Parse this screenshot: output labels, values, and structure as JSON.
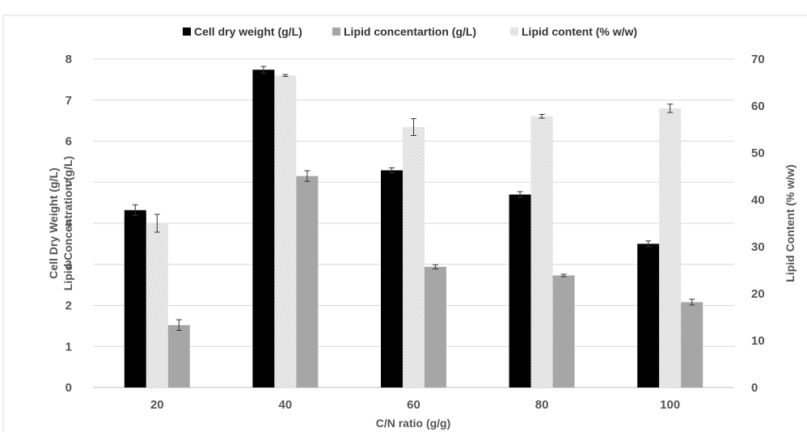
{
  "chart_data": {
    "type": "bar",
    "categories": [
      "20",
      "40",
      "60",
      "80",
      "100"
    ],
    "series": [
      {
        "name": "Cell dry weight (g/L)",
        "axis": "left",
        "color": "#000000",
        "values": [
          4.32,
          7.74,
          5.29,
          4.7,
          3.5
        ],
        "errors": [
          0.13,
          0.08,
          0.06,
          0.07,
          0.07
        ]
      },
      {
        "name": "Lipid concentartion (g/L)",
        "axis": "left",
        "color": "#a6a6a6",
        "values": [
          1.52,
          5.15,
          2.94,
          2.73,
          2.08
        ],
        "errors": [
          0.13,
          0.13,
          0.05,
          0.03,
          0.07
        ]
      },
      {
        "name": "Lipid content (% w/w)",
        "axis": "right",
        "color": "#e6e6e6",
        "pattern": "dotted",
        "values": [
          35.0,
          66.5,
          55.5,
          57.8,
          59.5
        ],
        "errors": [
          1.9,
          0.2,
          1.8,
          0.4,
          0.9
        ]
      }
    ],
    "xlabel": "C/N ratio (g/g)",
    "ylabel_left": [
      "Cell Dry Weight (g/L)",
      "Lipid Concentration (g/L)"
    ],
    "ylabel_right": "Lipid Content (% w/w)",
    "ylim_left": [
      0,
      8
    ],
    "yticks_left": [
      "0",
      "1",
      "2",
      "3",
      "4",
      "5",
      "6",
      "7",
      "8"
    ],
    "ylim_right": [
      0,
      70
    ],
    "yticks_right": [
      "0",
      "10",
      "20",
      "30",
      "40",
      "50",
      "60",
      "70"
    ],
    "grid": true,
    "legend_position": "top-center"
  }
}
